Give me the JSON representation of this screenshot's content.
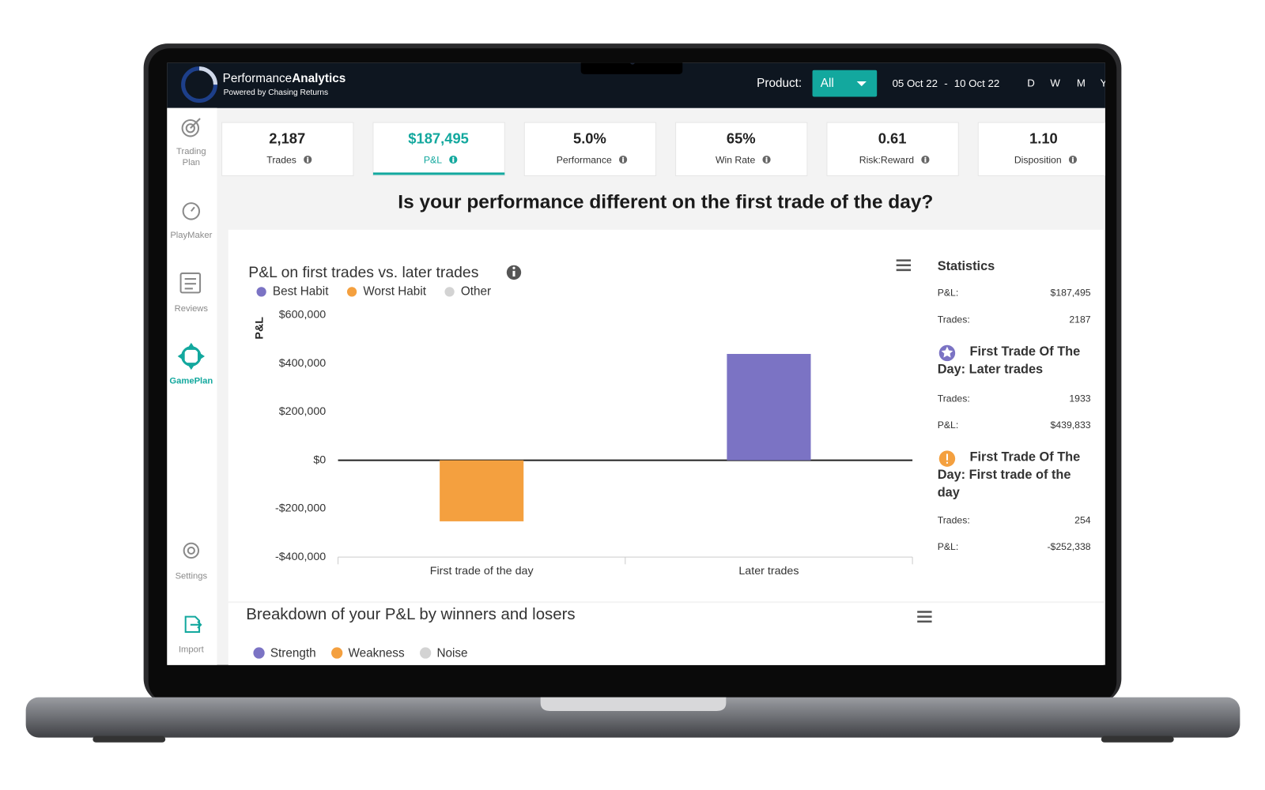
{
  "header": {
    "title_light": "Performance",
    "title_bold": "Analytics",
    "subtitle": "Powered by Chasing Returns",
    "product_label": "Product:",
    "product_value": "All",
    "date_from": "05 Oct 22",
    "date_separator": "-",
    "date_to": "10 Oct 22",
    "periods": [
      "D",
      "W",
      "M",
      "Y"
    ]
  },
  "sidebar": [
    {
      "lines": [
        "Trading",
        "Plan"
      ]
    },
    {
      "lines": [
        "PlayMaker"
      ]
    },
    {
      "lines": [
        "Reviews"
      ]
    },
    {
      "lines": [
        "GamePlan"
      ]
    },
    {
      "lines": [
        "Settings"
      ]
    },
    {
      "lines": [
        "Import"
      ]
    }
  ],
  "kpis": [
    {
      "value": "2,187",
      "label": "Trades"
    },
    {
      "value": "$187,495",
      "label": "P&L"
    },
    {
      "value": "5.0%",
      "label": "Performance"
    },
    {
      "value": "65%",
      "label": "Win Rate"
    },
    {
      "value": "0.61",
      "label": "Risk:Reward"
    },
    {
      "value": "1.10",
      "label": "Disposition"
    }
  ],
  "question": "Is your performance different on the first trade of the day?",
  "chart_data": {
    "type": "bar",
    "title": "P&L on first trades vs. later trades",
    "y_label": "P&L",
    "categories": [
      "First trade of the day",
      "Later trades"
    ],
    "series": [
      {
        "name": "Best Habit",
        "color": "#7b73c4",
        "values": [
          null,
          439833
        ]
      },
      {
        "name": "Worst Habit",
        "color": "#f4a03f",
        "values": [
          -252338,
          null
        ]
      },
      {
        "name": "Other",
        "color": "#d3d3d3",
        "values": [
          null,
          null
        ]
      }
    ],
    "ylim": [
      -400000,
      600000
    ],
    "yticks": [
      {
        "value": -400000,
        "label": "-$400,000"
      },
      {
        "value": -200000,
        "label": "-$200,000"
      },
      {
        "value": 0,
        "label": "$0"
      },
      {
        "value": 200000,
        "label": "$200,000"
      },
      {
        "value": 400000,
        "label": "$400,000"
      },
      {
        "value": 600000,
        "label": "$600,000"
      }
    ]
  },
  "statistics": {
    "title": "Statistics",
    "rows": [
      {
        "label": "P&L:",
        "value": "$187,495"
      },
      {
        "label": "Trades:",
        "value": "2187"
      }
    ],
    "groups": [
      {
        "title": "First Trade Of The Day: Later trades",
        "rows": [
          {
            "label": "Trades:",
            "value": "1933"
          },
          {
            "label": "P&L:",
            "value": "$439,833"
          }
        ]
      },
      {
        "title": "First Trade Of The Day: First trade of the day",
        "rows": [
          {
            "label": "Trades:",
            "value": "254"
          },
          {
            "label": "P&L:",
            "value": "-$252,338"
          }
        ]
      }
    ]
  },
  "breakdown": {
    "title": "Breakdown of your P&L by winners and losers",
    "legend": [
      {
        "name": "Strength",
        "color": "#7b73c4"
      },
      {
        "name": "Weakness",
        "color": "#f4a03f"
      },
      {
        "name": "Noise",
        "color": "#d3d3d3"
      }
    ]
  }
}
